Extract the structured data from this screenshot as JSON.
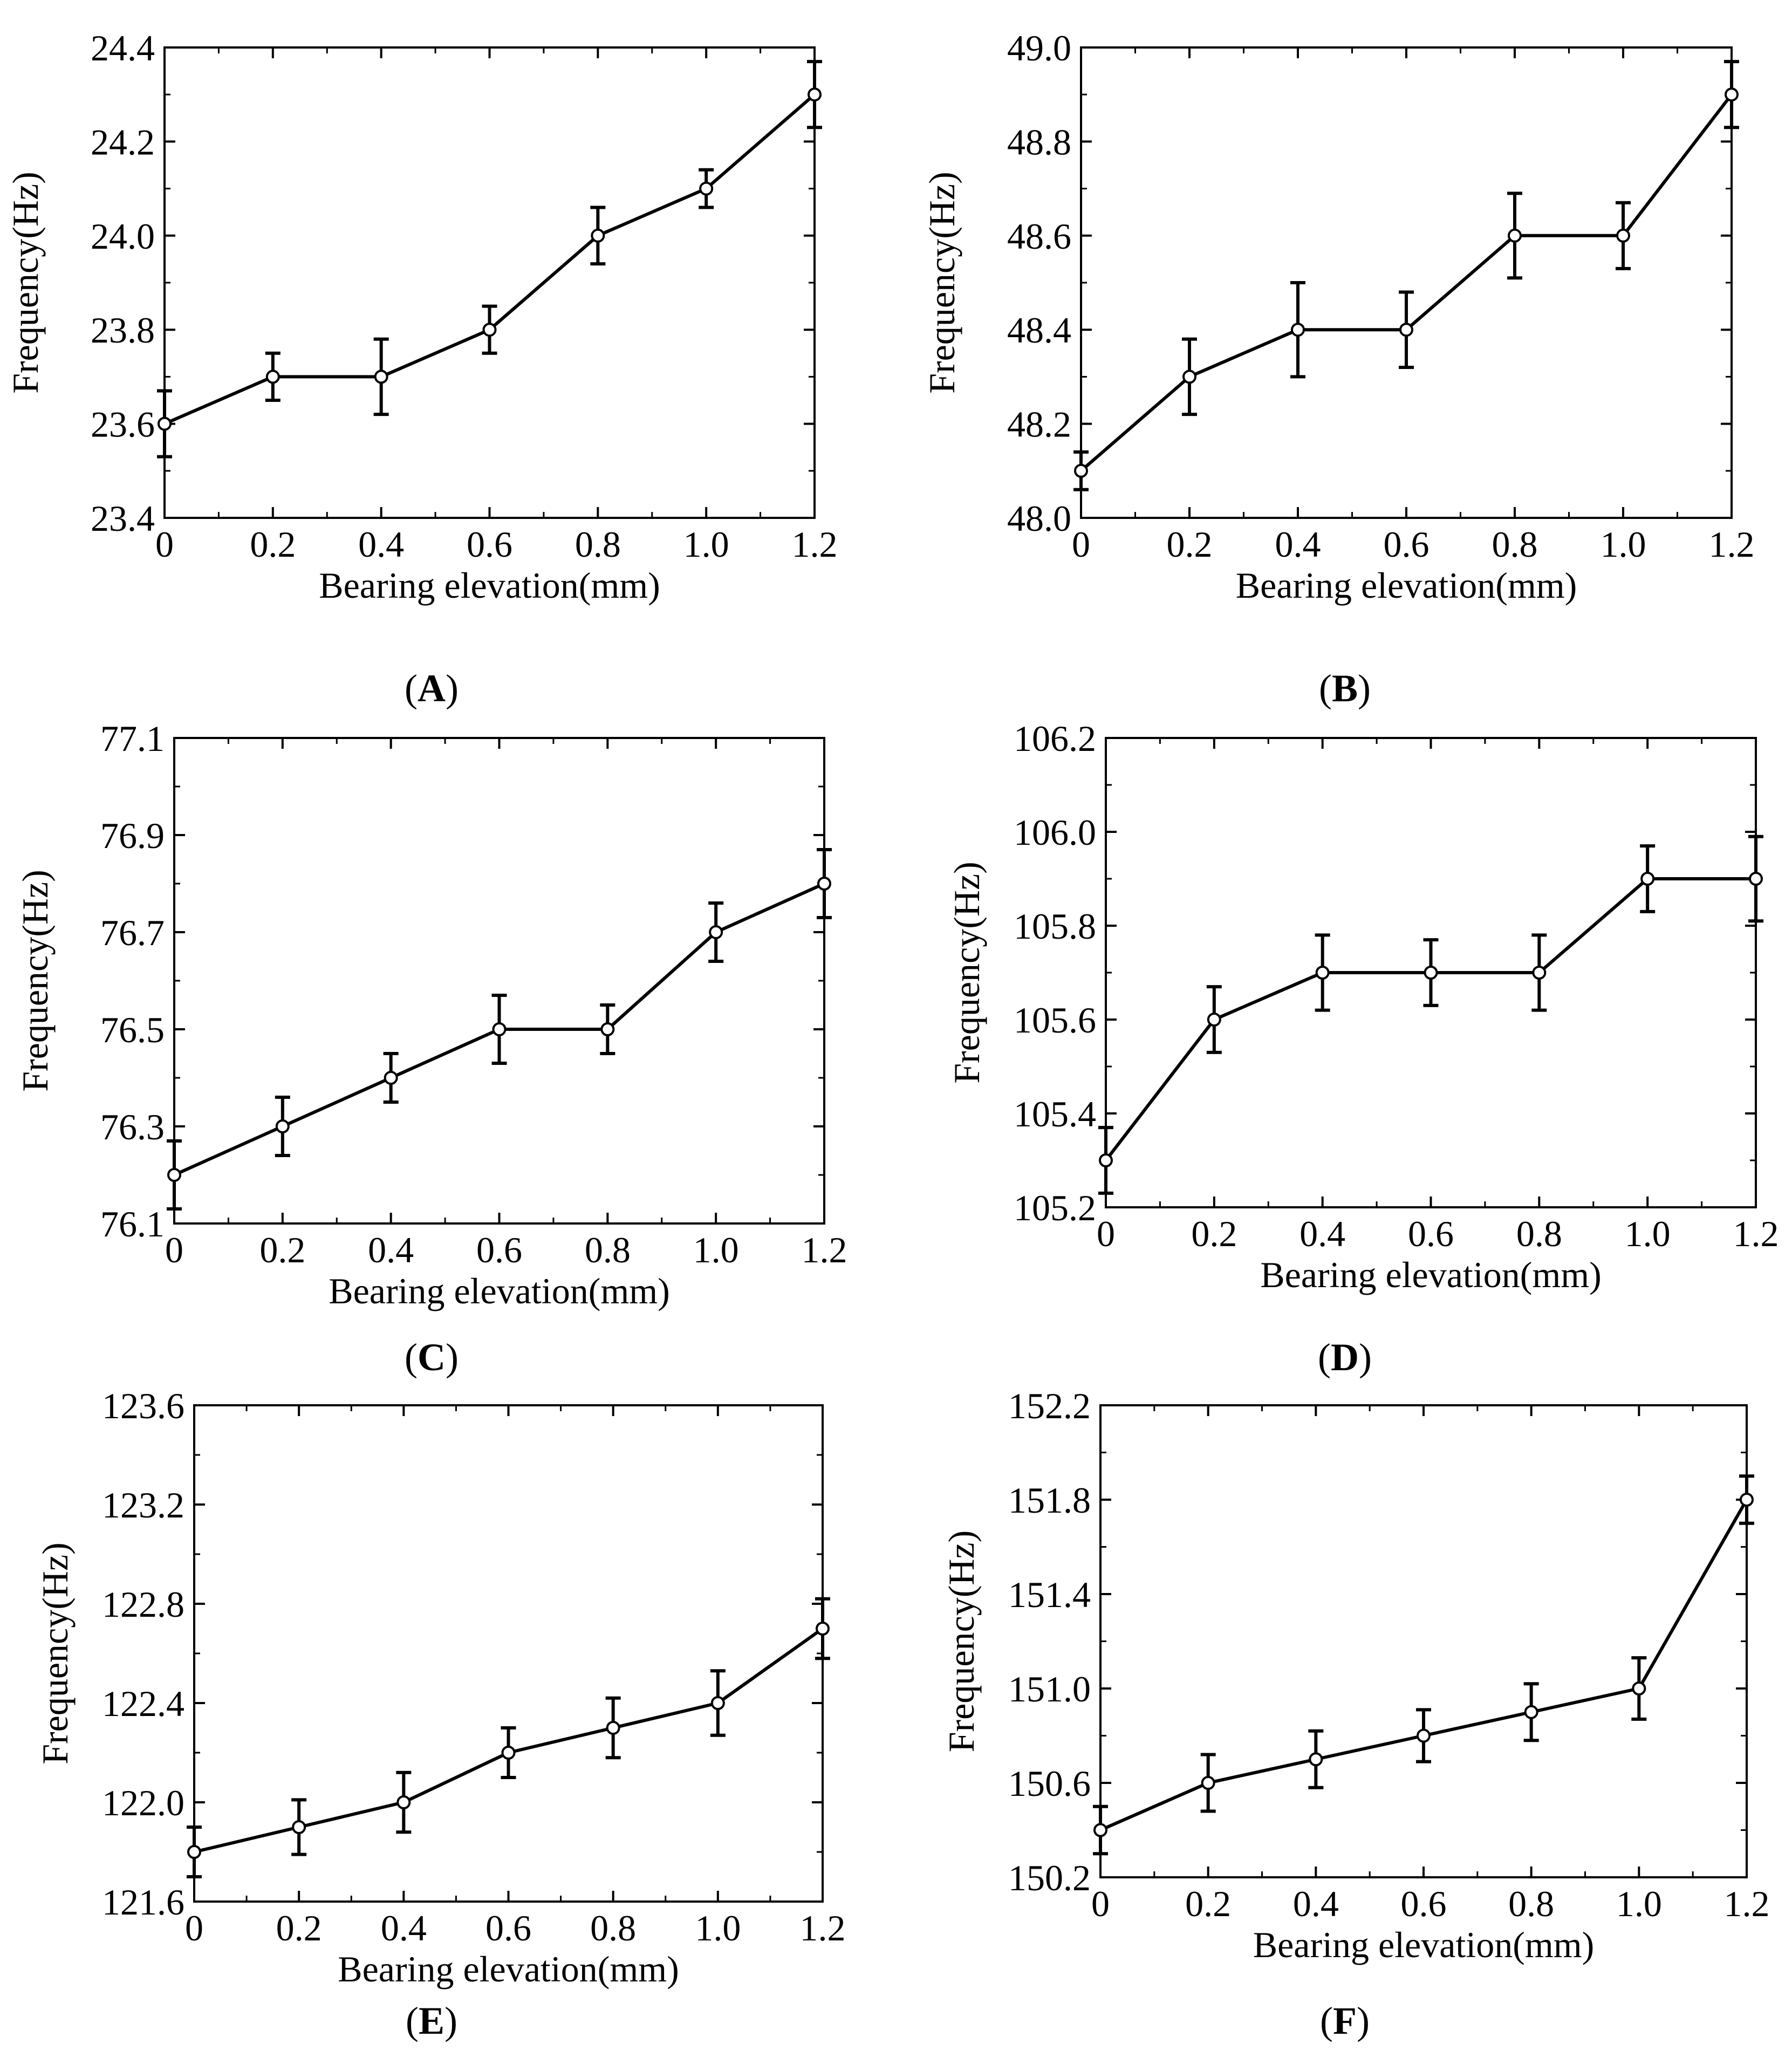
{
  "figure": {
    "x_axis_label": "Bearing elevation(mm)",
    "y_axis_label": "Frequency(Hz)"
  },
  "chart_data": [
    {
      "type": "line",
      "panel": "A",
      "title": "",
      "xlabel": "Bearing elevation(mm)",
      "ylabel": "Frequency(Hz)",
      "x": [
        0,
        0.2,
        0.4,
        0.6,
        0.8,
        1.0,
        1.2
      ],
      "x_tick_labels": [
        "0",
        "0.2",
        "0.4",
        "0.6",
        "0.8",
        "1.0",
        "1.2"
      ],
      "xlim": [
        0,
        1.2
      ],
      "ylim": [
        23.4,
        24.4
      ],
      "y_ticks": [
        23.4,
        23.6,
        23.8,
        24.0,
        24.2,
        24.4
      ],
      "y_tick_labels": [
        "23.4",
        "23.6",
        "23.8",
        "24.0",
        "24.2",
        "24.4"
      ],
      "series": [
        {
          "name": "Frequency",
          "values": [
            23.6,
            23.7,
            23.7,
            23.8,
            24.0,
            24.1,
            24.3
          ]
        }
      ],
      "errors": [
        0.07,
        0.05,
        0.08,
        0.05,
        0.06,
        0.04,
        0.07
      ],
      "grid": false,
      "marker": "circle"
    },
    {
      "type": "line",
      "panel": "B",
      "title": "",
      "xlabel": "Bearing elevation(mm)",
      "ylabel": "Frequency(Hz)",
      "x": [
        0,
        0.2,
        0.4,
        0.6,
        0.8,
        1.0,
        1.2
      ],
      "x_tick_labels": [
        "0",
        "0.2",
        "0.4",
        "0.6",
        "0.8",
        "1.0",
        "1.2"
      ],
      "xlim": [
        0,
        1.2
      ],
      "ylim": [
        48.0,
        49.0
      ],
      "y_ticks": [
        48.0,
        48.2,
        48.4,
        48.6,
        48.8,
        49.0
      ],
      "y_tick_labels": [
        "48.0",
        "48.2",
        "48.4",
        "48.6",
        "48.8",
        "49.0"
      ],
      "series": [
        {
          "name": "Frequency",
          "values": [
            48.1,
            48.3,
            48.4,
            48.4,
            48.6,
            48.6,
            48.9
          ]
        }
      ],
      "errors": [
        0.04,
        0.08,
        0.1,
        0.08,
        0.09,
        0.07,
        0.07
      ],
      "grid": false,
      "marker": "circle"
    },
    {
      "type": "line",
      "panel": "C",
      "title": "",
      "xlabel": "Bearing elevation(mm)",
      "ylabel": "Frequency(Hz)",
      "x": [
        0,
        0.2,
        0.4,
        0.6,
        0.8,
        1.0,
        1.2
      ],
      "x_tick_labels": [
        "0",
        "0.2",
        "0.4",
        "0.6",
        "0.8",
        "1.0",
        "1.2"
      ],
      "xlim": [
        0,
        1.2
      ],
      "ylim": [
        76.1,
        77.1
      ],
      "y_ticks": [
        76.1,
        76.3,
        76.5,
        76.7,
        76.9,
        77.1
      ],
      "y_tick_labels": [
        "76.1",
        "76.3",
        "76.5",
        "76.7",
        "76.9",
        "77.1"
      ],
      "series": [
        {
          "name": "Frequency",
          "values": [
            76.2,
            76.3,
            76.4,
            76.5,
            76.5,
            76.7,
            76.8
          ]
        }
      ],
      "errors": [
        0.07,
        0.06,
        0.05,
        0.07,
        0.05,
        0.06,
        0.07
      ],
      "grid": false,
      "marker": "circle"
    },
    {
      "type": "line",
      "panel": "D",
      "title": "",
      "xlabel": "Bearing elevation(mm)",
      "ylabel": "Frequency(Hz)",
      "x": [
        0,
        0.2,
        0.4,
        0.6,
        0.8,
        1.0,
        1.2
      ],
      "x_tick_labels": [
        "0",
        "0.2",
        "0.4",
        "0.6",
        "0.8",
        "1.0",
        "1.2"
      ],
      "xlim": [
        0,
        1.2
      ],
      "ylim": [
        105.2,
        106.2
      ],
      "y_ticks": [
        105.2,
        105.4,
        105.6,
        105.8,
        106.0,
        106.2
      ],
      "y_tick_labels": [
        "105.2",
        "105.4",
        "105.6",
        "105.8",
        "106.0",
        "106.2"
      ],
      "series": [
        {
          "name": "Frequency",
          "values": [
            105.3,
            105.6,
            105.7,
            105.7,
            105.7,
            105.9,
            105.9
          ]
        }
      ],
      "errors": [
        0.07,
        0.07,
        0.08,
        0.07,
        0.08,
        0.07,
        0.09
      ],
      "grid": false,
      "marker": "circle"
    },
    {
      "type": "line",
      "panel": "E",
      "title": "",
      "xlabel": "Bearing elevation(mm)",
      "ylabel": "Frequency(Hz)",
      "x": [
        0,
        0.2,
        0.4,
        0.6,
        0.8,
        1.0,
        1.2
      ],
      "x_tick_labels": [
        "0",
        "0.2",
        "0.4",
        "0.6",
        "0.8",
        "1.0",
        "1.2"
      ],
      "xlim": [
        0,
        1.2
      ],
      "ylim": [
        121.6,
        123.6
      ],
      "y_ticks": [
        121.6,
        122.0,
        122.4,
        122.8,
        123.2,
        123.6
      ],
      "y_tick_labels": [
        "121.6",
        "122.0",
        "122.4",
        "122.8",
        "123.2",
        "123.6"
      ],
      "series": [
        {
          "name": "Frequency",
          "values": [
            121.8,
            121.9,
            122.0,
            122.2,
            122.3,
            122.4,
            122.7
          ]
        }
      ],
      "errors": [
        0.1,
        0.11,
        0.12,
        0.1,
        0.12,
        0.13,
        0.12
      ],
      "grid": false,
      "marker": "circle"
    },
    {
      "type": "line",
      "panel": "F",
      "title": "",
      "xlabel": "Bearing elevation(mm)",
      "ylabel": "Frequency(Hz)",
      "x": [
        0,
        0.2,
        0.4,
        0.6,
        0.8,
        1.0,
        1.2
      ],
      "x_tick_labels": [
        "0",
        "0.2",
        "0.4",
        "0.6",
        "0.8",
        "1.0",
        "1.2"
      ],
      "xlim": [
        0,
        1.2
      ],
      "ylim": [
        150.2,
        152.2
      ],
      "y_ticks": [
        150.2,
        150.6,
        151.0,
        151.4,
        151.8,
        152.2
      ],
      "y_tick_labels": [
        "150.2",
        "150.6",
        "151.0",
        "151.4",
        "151.8",
        "152.2"
      ],
      "series": [
        {
          "name": "Frequency",
          "values": [
            150.4,
            150.6,
            150.7,
            150.8,
            150.9,
            151.0,
            151.8
          ]
        }
      ],
      "errors": [
        0.1,
        0.12,
        0.12,
        0.11,
        0.12,
        0.13,
        0.1
      ],
      "grid": false,
      "marker": "circle"
    }
  ]
}
